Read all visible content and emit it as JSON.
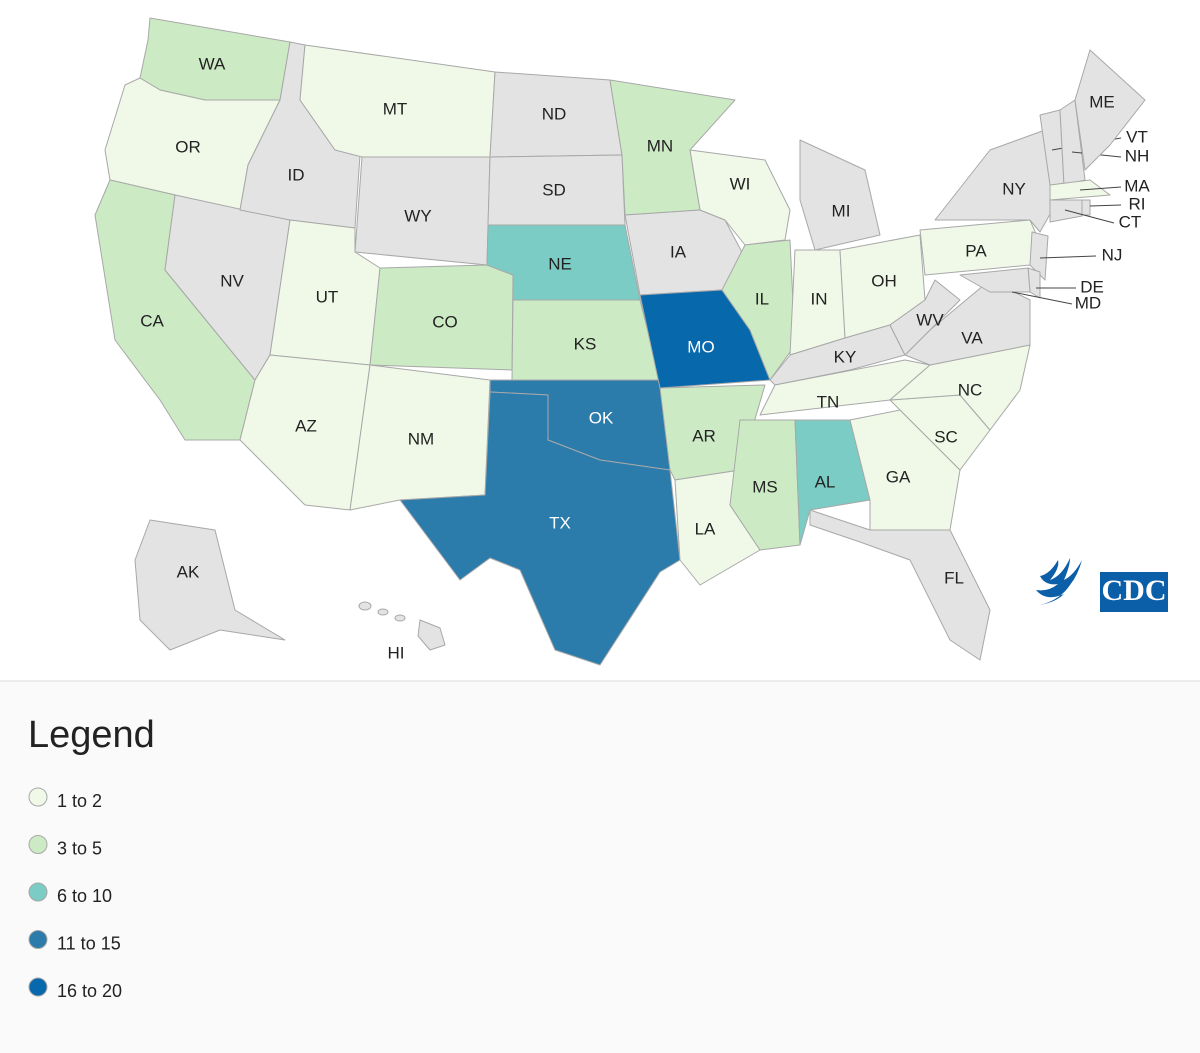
{
  "map": {
    "states": [
      {
        "label": "WA",
        "color": "#ccebc5"
      },
      {
        "label": "OR",
        "color": "#f0f9e8"
      },
      {
        "label": "CA",
        "color": "#ccebc5"
      },
      {
        "label": "NV",
        "color": "#e3e3e4"
      },
      {
        "label": "ID",
        "color": "#e3e3e4"
      },
      {
        "label": "MT",
        "color": "#f0f9e8"
      },
      {
        "label": "WY",
        "color": "#e3e3e4"
      },
      {
        "label": "UT",
        "color": "#f0f9e8"
      },
      {
        "label": "CO",
        "color": "#ccebc5"
      },
      {
        "label": "AZ",
        "color": "#f0f9e8"
      },
      {
        "label": "NM",
        "color": "#f0f9e8"
      },
      {
        "label": "ND",
        "color": "#e3e3e4"
      },
      {
        "label": "SD",
        "color": "#e3e3e4"
      },
      {
        "label": "NE",
        "color": "#7bccc4"
      },
      {
        "label": "KS",
        "color": "#ccebc5"
      },
      {
        "label": "OK",
        "color": "#2b7bab"
      },
      {
        "label": "TX",
        "color": "#2b7bab"
      },
      {
        "label": "MN",
        "color": "#ccebc5"
      },
      {
        "label": "IA",
        "color": "#e3e3e4"
      },
      {
        "label": "MO",
        "color": "#0868ac"
      },
      {
        "label": "AR",
        "color": "#ccebc5"
      },
      {
        "label": "LA",
        "color": "#f0f9e8"
      },
      {
        "label": "WI",
        "color": "#f0f9e8"
      },
      {
        "label": "IL",
        "color": "#ccebc5"
      },
      {
        "label": "MI",
        "color": "#e3e3e4"
      },
      {
        "label": "IN",
        "color": "#f0f9e8"
      },
      {
        "label": "OH",
        "color": "#f0f9e8"
      },
      {
        "label": "KY",
        "color": "#e3e3e4"
      },
      {
        "label": "TN",
        "color": "#f0f9e8"
      },
      {
        "label": "MS",
        "color": "#ccebc5"
      },
      {
        "label": "AL",
        "color": "#7bccc4"
      },
      {
        "label": "GA",
        "color": "#f0f9e8"
      },
      {
        "label": "FL",
        "color": "#e3e3e4"
      },
      {
        "label": "SC",
        "color": "#f0f9e8"
      },
      {
        "label": "NC",
        "color": "#f0f9e8"
      },
      {
        "label": "VA",
        "color": "#e3e3e4"
      },
      {
        "label": "WV",
        "color": "#e3e3e4"
      },
      {
        "label": "PA",
        "color": "#f0f9e8"
      },
      {
        "label": "NY",
        "color": "#e3e3e4"
      },
      {
        "label": "NJ",
        "color": "#e3e3e4"
      },
      {
        "label": "DE",
        "color": "#e3e3e4"
      },
      {
        "label": "MD",
        "color": "#e3e3e4"
      },
      {
        "label": "VT",
        "color": "#e3e3e4"
      },
      {
        "label": "NH",
        "color": "#e3e3e4"
      },
      {
        "label": "ME",
        "color": "#e3e3e4"
      },
      {
        "label": "MA",
        "color": "#f0f9e8"
      },
      {
        "label": "RI",
        "color": "#e3e3e4"
      },
      {
        "label": "CT",
        "color": "#e3e3e4"
      },
      {
        "label": "AK",
        "color": "#e3e3e4"
      },
      {
        "label": "HI",
        "color": "#e3e3e4"
      }
    ],
    "logo_text": "CDC"
  },
  "legend": {
    "title": "Legend",
    "items": [
      {
        "label": "1 to 2",
        "color": "#f0f9e8"
      },
      {
        "label": "3 to 5",
        "color": "#ccebc5"
      },
      {
        "label": "6 to 10",
        "color": "#7bccc4"
      },
      {
        "label": "11 to 15",
        "color": "#2b7bab"
      },
      {
        "label": "16 to 20",
        "color": "#0868ac"
      }
    ]
  }
}
